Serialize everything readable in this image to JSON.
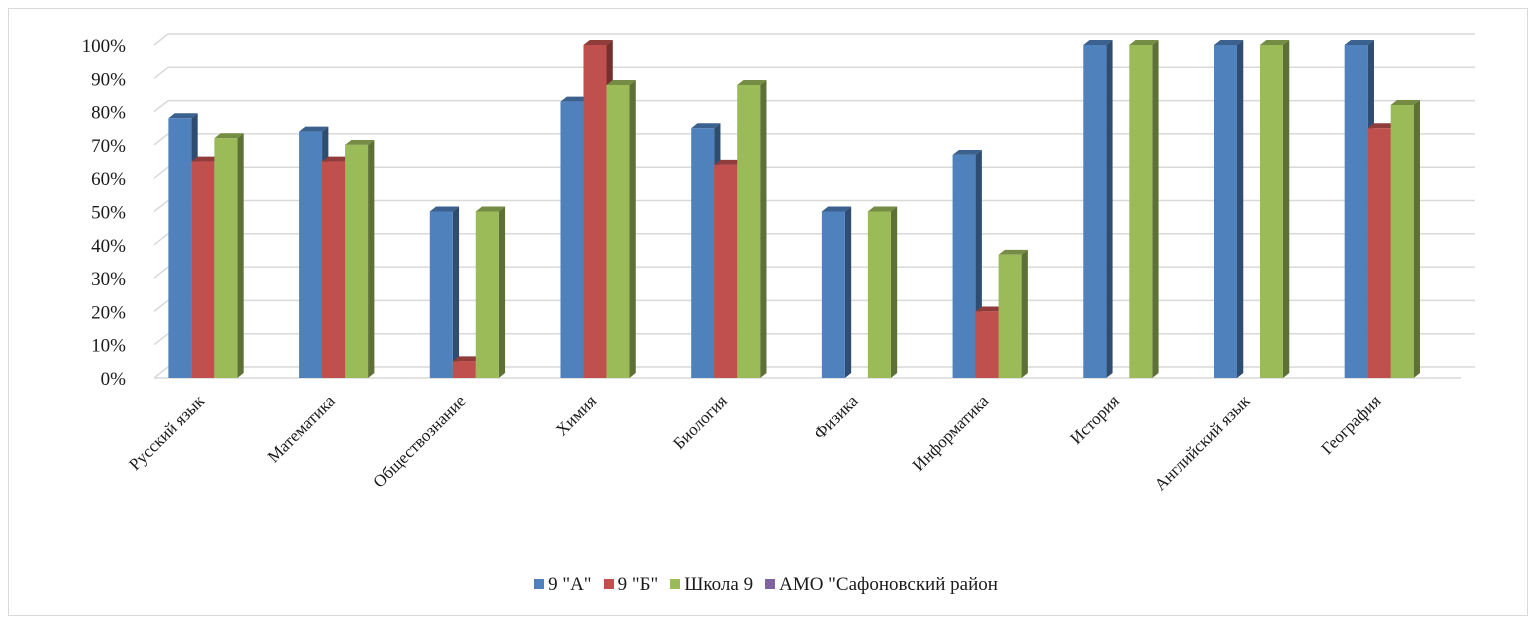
{
  "chart_data": {
    "type": "bar",
    "categories": [
      "Русский язык",
      "Математика",
      "Обществознание",
      "Химия",
      "Биология",
      "Физика",
      "Информатика",
      "История",
      "Английский язык",
      "География"
    ],
    "series": [
      {
        "name": "9 \"А\"",
        "color": "#4f81bd",
        "values": [
          78,
          74,
          50,
          83,
          75,
          50,
          67,
          100,
          100,
          100
        ]
      },
      {
        "name": "9 \"Б\"",
        "color": "#c0504d",
        "values": [
          65,
          65,
          5,
          100,
          64,
          0,
          20,
          0,
          0,
          75
        ]
      },
      {
        "name": "Школа 9",
        "color": "#9bbb59",
        "values": [
          72,
          70,
          50,
          88,
          88,
          50,
          37,
          100,
          100,
          82
        ]
      },
      {
        "name": "АМО \"Сафоновский район",
        "color": "#8064a2",
        "values": [
          0,
          0,
          0,
          0,
          0,
          0,
          0,
          0,
          0,
          0
        ]
      }
    ],
    "ylim": [
      0,
      100
    ],
    "yticks": [
      "0%",
      "10%",
      "20%",
      "30%",
      "40%",
      "50%",
      "60%",
      "70%",
      "80%",
      "90%",
      "100%"
    ],
    "grid": true,
    "legend_position": "bottom",
    "title": "",
    "xlabel": "",
    "ylabel": ""
  }
}
